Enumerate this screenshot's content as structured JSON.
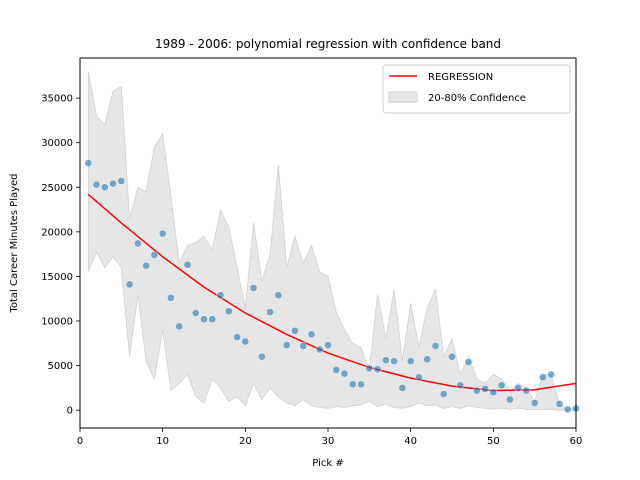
{
  "chart_data": {
    "type": "scatter",
    "title": "1989 - 2006: polynomial regression with confidence band",
    "xlabel": "Pick #",
    "ylabel": "Total Career Minutes Played",
    "xlim": [
      0,
      60
    ],
    "ylim": [
      -2000,
      39500
    ],
    "xticks": [
      0,
      10,
      20,
      30,
      40,
      50,
      60
    ],
    "yticks": [
      0,
      5000,
      10000,
      15000,
      20000,
      25000,
      30000,
      35000
    ],
    "grid": false,
    "legend_position": "top-right",
    "colors": {
      "points": "#1f77b4",
      "regression": "#ff0000",
      "band": "#e6e6e6",
      "band_edge": "#d0d0d0"
    },
    "series": [
      {
        "name": "REGRESSION",
        "kind": "line",
        "x": [
          1,
          5,
          10,
          15,
          20,
          25,
          30,
          35,
          40,
          45,
          50,
          55,
          60
        ],
        "values": [
          24200,
          21000,
          17200,
          13800,
          10900,
          8500,
          6400,
          4800,
          3600,
          2700,
          2200,
          2300,
          3000
        ]
      },
      {
        "name": "20-80% Confidence",
        "kind": "band",
        "x": [
          1,
          2,
          3,
          4,
          5,
          6,
          7,
          8,
          9,
          10,
          11,
          12,
          13,
          14,
          15,
          16,
          17,
          18,
          19,
          20,
          21,
          22,
          23,
          24,
          25,
          26,
          27,
          28,
          29,
          30,
          31,
          32,
          33,
          34,
          35,
          36,
          37,
          38,
          39,
          40,
          41,
          42,
          43,
          44,
          45,
          46,
          47,
          48,
          49,
          50,
          51,
          52,
          53,
          54,
          55,
          56,
          57,
          58,
          59,
          60
        ],
        "upper": [
          38000,
          33000,
          32000,
          35800,
          36300,
          21500,
          25000,
          24500,
          29500,
          31000,
          24000,
          16500,
          18500,
          18800,
          19500,
          18000,
          22500,
          20500,
          16000,
          11500,
          21000,
          14500,
          17500,
          27500,
          16000,
          19500,
          16500,
          18500,
          15500,
          15000,
          11000,
          9000,
          7500,
          7000,
          4500,
          13000,
          8000,
          13500,
          5500,
          12000,
          7000,
          11500,
          13500,
          6000,
          8000,
          4000,
          6000,
          3500,
          3000,
          4000,
          3500,
          2000,
          3000,
          2500,
          1000,
          4000,
          4000,
          600,
          100,
          200
        ],
        "lower": [
          15600,
          17700,
          16000,
          17200,
          16000,
          6000,
          13000,
          5500,
          3500,
          9000,
          2200,
          3000,
          4000,
          1500,
          800,
          3500,
          2500,
          1000,
          1500,
          500,
          3000,
          1200,
          2500,
          1500,
          800,
          500,
          1200,
          500,
          300,
          200,
          400,
          300,
          500,
          600,
          1000,
          400,
          700,
          300,
          200,
          400,
          800,
          500,
          600,
          200,
          400,
          200,
          500,
          300,
          200,
          100,
          200,
          100,
          200,
          100,
          50,
          100,
          100,
          0,
          0,
          0
        ]
      },
      {
        "name": "",
        "kind": "scatter",
        "x": [
          1,
          2,
          3,
          4,
          5,
          6,
          7,
          8,
          9,
          10,
          11,
          12,
          13,
          14,
          15,
          16,
          17,
          18,
          19,
          20,
          21,
          22,
          23,
          24,
          25,
          26,
          27,
          28,
          29,
          30,
          31,
          32,
          33,
          34,
          35,
          36,
          37,
          38,
          39,
          40,
          41,
          42,
          43,
          44,
          45,
          46,
          47,
          48,
          49,
          50,
          51,
          52,
          53,
          54,
          55,
          56,
          57,
          58,
          59,
          60
        ],
        "values": [
          27700,
          25300,
          25000,
          25400,
          25700,
          14100,
          18700,
          16200,
          17400,
          19800,
          12600,
          9400,
          16300,
          10900,
          10200,
          10200,
          12900,
          11100,
          8200,
          7700,
          13700,
          6000,
          11000,
          12900,
          7300,
          8900,
          7200,
          8500,
          6800,
          7300,
          4500,
          4100,
          2900,
          2900,
          4700,
          4600,
          5600,
          5500,
          2500,
          5500,
          3700,
          5700,
          7200,
          1800,
          6000,
          2800,
          5400,
          2200,
          2400,
          2000,
          2800,
          1200,
          2500,
          2200,
          800,
          3700,
          4000,
          700,
          100,
          200
        ]
      }
    ]
  }
}
